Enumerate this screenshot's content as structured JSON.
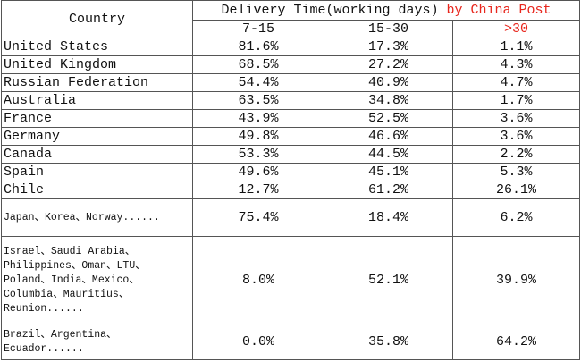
{
  "header": {
    "country": "Country",
    "title": "Delivery Time(working days)",
    "source": "by China Post",
    "columns": [
      "7-15",
      "15-30",
      ">30"
    ]
  },
  "table": {
    "rows": [
      [
        "United States",
        "81.6%",
        "17.3%",
        "1.1%"
      ],
      [
        "United Kingdom",
        "68.5%",
        "27.2%",
        "4.3%"
      ],
      [
        "Russian Federation",
        "54.4%",
        "40.9%",
        "4.7%"
      ],
      [
        "Australia",
        "63.5%",
        "34.8%",
        "1.7%"
      ],
      [
        "France",
        "43.9%",
        "52.5%",
        "3.6%"
      ],
      [
        "Germany",
        "49.8%",
        "46.6%",
        "3.6%"
      ],
      [
        "Canada",
        "53.3%",
        "44.5%",
        "2.2%"
      ],
      [
        "Spain",
        "49.6%",
        "45.1%",
        "5.3%"
      ],
      [
        "Chile",
        "12.7%",
        "61.2%",
        "26.1%"
      ],
      [
        "Japan、Korea、Norway......",
        "75.4%",
        "18.4%",
        "6.2%"
      ],
      [
        "Israel、Saudi Arabia、\nPhilippines、Oman、LTU、\nPoland、India、Mexico、\nColumbia、Mauritius、\nReunion......",
        "8.0%",
        "52.1%",
        "39.9%"
      ],
      [
        "Brazil、Argentina、\nEcuador......",
        "0.0%",
        "35.8%",
        "64.2%"
      ]
    ]
  }
}
